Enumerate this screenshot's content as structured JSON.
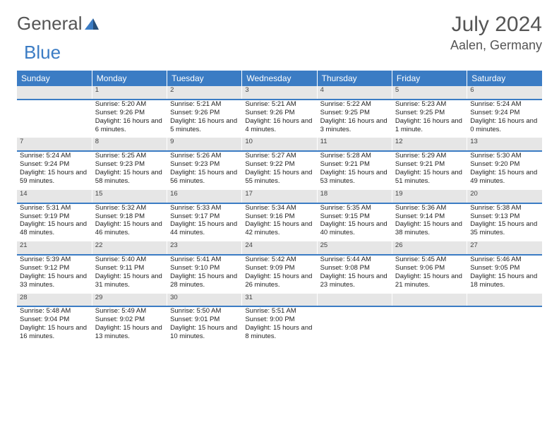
{
  "brand": {
    "part1": "General",
    "part2": "Blue"
  },
  "title": "July 2024",
  "location": "Aalen, Germany",
  "colors": {
    "header_bg": "#3b7cc4",
    "header_fg": "#ffffff",
    "daynum_bg": "#e6e6e6",
    "daynum_border": "#3b7cc4",
    "page_bg": "#ffffff",
    "text": "#333333",
    "logo_gray": "#555555",
    "logo_blue": "#3b7cc4"
  },
  "columns": [
    "Sunday",
    "Monday",
    "Tuesday",
    "Wednesday",
    "Thursday",
    "Friday",
    "Saturday"
  ],
  "weeks": [
    {
      "days": [
        null,
        {
          "n": "1",
          "sunrise": "5:20 AM",
          "sunset": "9:26 PM",
          "daylight": "16 hours and 6 minutes."
        },
        {
          "n": "2",
          "sunrise": "5:21 AM",
          "sunset": "9:26 PM",
          "daylight": "16 hours and 5 minutes."
        },
        {
          "n": "3",
          "sunrise": "5:21 AM",
          "sunset": "9:26 PM",
          "daylight": "16 hours and 4 minutes."
        },
        {
          "n": "4",
          "sunrise": "5:22 AM",
          "sunset": "9:25 PM",
          "daylight": "16 hours and 3 minutes."
        },
        {
          "n": "5",
          "sunrise": "5:23 AM",
          "sunset": "9:25 PM",
          "daylight": "16 hours and 1 minute."
        },
        {
          "n": "6",
          "sunrise": "5:24 AM",
          "sunset": "9:24 PM",
          "daylight": "16 hours and 0 minutes."
        }
      ]
    },
    {
      "days": [
        {
          "n": "7",
          "sunrise": "5:24 AM",
          "sunset": "9:24 PM",
          "daylight": "15 hours and 59 minutes."
        },
        {
          "n": "8",
          "sunrise": "5:25 AM",
          "sunset": "9:23 PM",
          "daylight": "15 hours and 58 minutes."
        },
        {
          "n": "9",
          "sunrise": "5:26 AM",
          "sunset": "9:23 PM",
          "daylight": "15 hours and 56 minutes."
        },
        {
          "n": "10",
          "sunrise": "5:27 AM",
          "sunset": "9:22 PM",
          "daylight": "15 hours and 55 minutes."
        },
        {
          "n": "11",
          "sunrise": "5:28 AM",
          "sunset": "9:21 PM",
          "daylight": "15 hours and 53 minutes."
        },
        {
          "n": "12",
          "sunrise": "5:29 AM",
          "sunset": "9:21 PM",
          "daylight": "15 hours and 51 minutes."
        },
        {
          "n": "13",
          "sunrise": "5:30 AM",
          "sunset": "9:20 PM",
          "daylight": "15 hours and 49 minutes."
        }
      ]
    },
    {
      "days": [
        {
          "n": "14",
          "sunrise": "5:31 AM",
          "sunset": "9:19 PM",
          "daylight": "15 hours and 48 minutes."
        },
        {
          "n": "15",
          "sunrise": "5:32 AM",
          "sunset": "9:18 PM",
          "daylight": "15 hours and 46 minutes."
        },
        {
          "n": "16",
          "sunrise": "5:33 AM",
          "sunset": "9:17 PM",
          "daylight": "15 hours and 44 minutes."
        },
        {
          "n": "17",
          "sunrise": "5:34 AM",
          "sunset": "9:16 PM",
          "daylight": "15 hours and 42 minutes."
        },
        {
          "n": "18",
          "sunrise": "5:35 AM",
          "sunset": "9:15 PM",
          "daylight": "15 hours and 40 minutes."
        },
        {
          "n": "19",
          "sunrise": "5:36 AM",
          "sunset": "9:14 PM",
          "daylight": "15 hours and 38 minutes."
        },
        {
          "n": "20",
          "sunrise": "5:38 AM",
          "sunset": "9:13 PM",
          "daylight": "15 hours and 35 minutes."
        }
      ]
    },
    {
      "days": [
        {
          "n": "21",
          "sunrise": "5:39 AM",
          "sunset": "9:12 PM",
          "daylight": "15 hours and 33 minutes."
        },
        {
          "n": "22",
          "sunrise": "5:40 AM",
          "sunset": "9:11 PM",
          "daylight": "15 hours and 31 minutes."
        },
        {
          "n": "23",
          "sunrise": "5:41 AM",
          "sunset": "9:10 PM",
          "daylight": "15 hours and 28 minutes."
        },
        {
          "n": "24",
          "sunrise": "5:42 AM",
          "sunset": "9:09 PM",
          "daylight": "15 hours and 26 minutes."
        },
        {
          "n": "25",
          "sunrise": "5:44 AM",
          "sunset": "9:08 PM",
          "daylight": "15 hours and 23 minutes."
        },
        {
          "n": "26",
          "sunrise": "5:45 AM",
          "sunset": "9:06 PM",
          "daylight": "15 hours and 21 minutes."
        },
        {
          "n": "27",
          "sunrise": "5:46 AM",
          "sunset": "9:05 PM",
          "daylight": "15 hours and 18 minutes."
        }
      ]
    },
    {
      "days": [
        {
          "n": "28",
          "sunrise": "5:48 AM",
          "sunset": "9:04 PM",
          "daylight": "15 hours and 16 minutes."
        },
        {
          "n": "29",
          "sunrise": "5:49 AM",
          "sunset": "9:02 PM",
          "daylight": "15 hours and 13 minutes."
        },
        {
          "n": "30",
          "sunrise": "5:50 AM",
          "sunset": "9:01 PM",
          "daylight": "15 hours and 10 minutes."
        },
        {
          "n": "31",
          "sunrise": "5:51 AM",
          "sunset": "9:00 PM",
          "daylight": "15 hours and 8 minutes."
        },
        null,
        null,
        null
      ]
    }
  ],
  "labels": {
    "sunrise": "Sunrise: ",
    "sunset": "Sunset: ",
    "daylight": "Daylight: "
  }
}
